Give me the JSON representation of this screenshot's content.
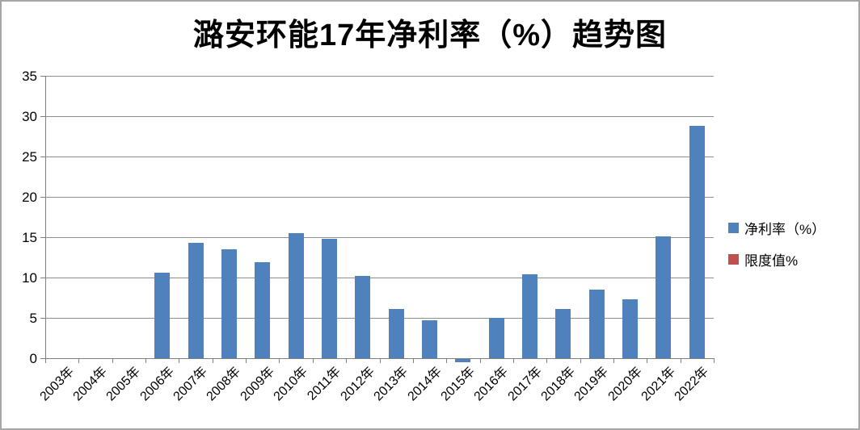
{
  "frame": {
    "border_color": "#a6a6a6",
    "background": "#ffffff"
  },
  "chart_data": {
    "type": "bar",
    "title": "潞安环能17年净利率（%）趋势图",
    "categories": [
      "2003年",
      "2004年",
      "2005年",
      "2006年",
      "2007年",
      "2008年",
      "2009年",
      "2010年",
      "2011年",
      "2012年",
      "2013年",
      "2014年",
      "2015年",
      "2016年",
      "2017年",
      "2018年",
      "2019年",
      "2020年",
      "2021年",
      "2022年"
    ],
    "series": [
      {
        "name": "净利率（%）",
        "color": "#4f81bd",
        "values": [
          0,
          0,
          0,
          10.6,
          14.3,
          13.5,
          11.9,
          15.5,
          14.8,
          10.2,
          6.1,
          4.7,
          -0.4,
          5.0,
          10.4,
          6.1,
          8.5,
          7.3,
          15.1,
          28.8
        ]
      }
    ],
    "legend": {
      "position": "right",
      "entries": [
        {
          "label": "净利率（%）",
          "color": "#4f81bd"
        },
        {
          "label": "限度值%",
          "color": "#c0504d"
        }
      ]
    },
    "xlabel": "",
    "ylabel": "",
    "ylim": [
      0,
      35
    ],
    "yticks": [
      0,
      5,
      10,
      15,
      20,
      25,
      30,
      35
    ],
    "x_label_rotation": -45,
    "grid": true,
    "grid_color": "#8e8e8e",
    "axis_color": "#7f7f7f",
    "text_color": "#000000"
  }
}
